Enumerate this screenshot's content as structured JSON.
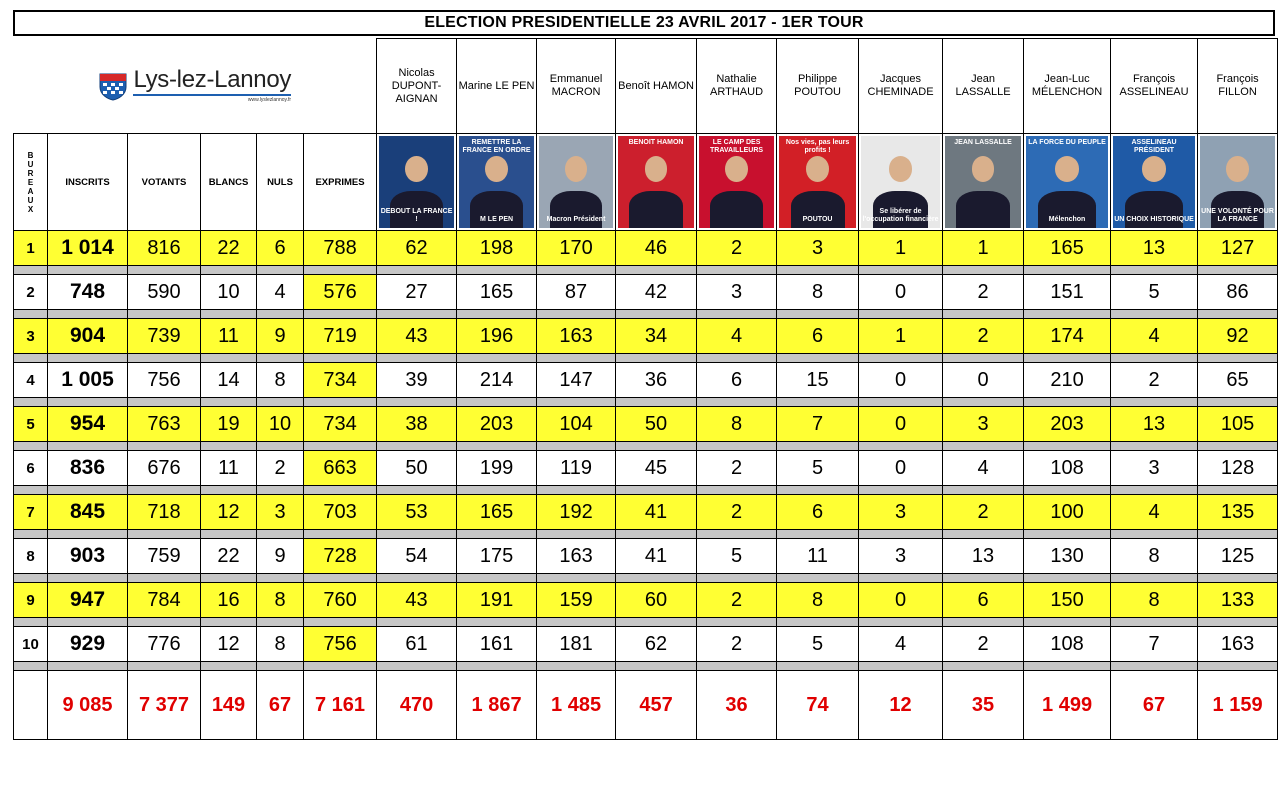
{
  "title": "ELECTION PRESIDENTIELLE 23 AVRIL 2017 - 1ER TOUR",
  "logo": {
    "name": "Lys-lez-Lannoy",
    "url": "www.lyslezlannoy.fr"
  },
  "columns": {
    "bureaux": [
      "B",
      "U",
      "R",
      "E",
      "A",
      "U",
      "X"
    ],
    "inscrits": "INSCRITS",
    "votants": "VOTANTS",
    "blancs": "BLANCS",
    "nuls": "NULS",
    "exprimes": "EXPRIMES"
  },
  "candidates": [
    {
      "name": "Nicolas DUPONT-AIGNAN",
      "line1": "Nicolas",
      "line2": "DUPONT-",
      "line3": "AIGNAN",
      "poster_bg": "#1a3f7a",
      "poster_caption": "DEBOUT LA FRANCE !",
      "poster_top": ""
    },
    {
      "name": "Marine LE PEN",
      "line1": "Marine LE PEN",
      "line2": "",
      "line3": "",
      "poster_bg": "#2a4f8e",
      "poster_caption": "M LE PEN",
      "poster_top": "REMETTRE LA FRANCE EN ORDRE"
    },
    {
      "name": "Emmanuel MACRON",
      "line1": "Emmanuel",
      "line2": "MACRON",
      "line3": "",
      "poster_bg": "#9aa6b4",
      "poster_caption": "Macron Président",
      "poster_top": ""
    },
    {
      "name": "Benoît HAMON",
      "line1": "Benoît HAMON",
      "line2": "",
      "line3": "",
      "poster_bg": "#cc1f2d",
      "poster_caption": "",
      "poster_top": "BENOIT HAMON"
    },
    {
      "name": "Nathalie ARTHAUD",
      "line1": "Nathalie",
      "line2": "ARTHAUD",
      "line3": "",
      "poster_bg": "#c8102e",
      "poster_caption": "",
      "poster_top": "LE CAMP DES TRAVAILLEURS"
    },
    {
      "name": "Philippe POUTOU",
      "line1": "Philippe",
      "line2": "POUTOU",
      "line3": "",
      "poster_bg": "#d21f26",
      "poster_caption": "POUTOU",
      "poster_top": "Nos vies, pas leurs profits !"
    },
    {
      "name": "Jacques CHEMINADE",
      "line1": "Jacques",
      "line2": "CHEMINADE",
      "line3": "",
      "poster_bg": "#e8e8e8",
      "poster_caption": "Se libérer de l'occupation financière",
      "poster_top": ""
    },
    {
      "name": "Jean LASSALLE",
      "line1": "Jean",
      "line2": "LASSALLE",
      "line3": "",
      "poster_bg": "#6e7880",
      "poster_caption": "",
      "poster_top": "JEAN LASSALLE"
    },
    {
      "name": "Jean-Luc MÉLENCHON",
      "line1": "Jean-Luc",
      "line2": "MÉLENCHON",
      "line3": "",
      "poster_bg": "#2d6bb5",
      "poster_caption": "Mélenchon",
      "poster_top": "LA FORCE DU PEUPLE"
    },
    {
      "name": "François ASSELINEAU",
      "line1": "François",
      "line2": "ASSELINEAU",
      "line3": "",
      "poster_bg": "#1f5aa6",
      "poster_caption": "UN CHOIX HISTORIQUE",
      "poster_top": "ASSELINEAU PRÉSIDENT"
    },
    {
      "name": "François FILLON",
      "line1": "François",
      "line2": "FILLON",
      "line3": "",
      "poster_bg": "#8fa1b3",
      "poster_caption": "UNE VOLONTÉ POUR LA FRANCE",
      "poster_top": ""
    }
  ],
  "rows": [
    {
      "bureau": "1",
      "inscrits": "1 014",
      "votants": "816",
      "blancs": "22",
      "nuls": "6",
      "exprimes": "788",
      "votes": [
        "62",
        "198",
        "170",
        "46",
        "2",
        "3",
        "1",
        "1",
        "165",
        "13",
        "127"
      ],
      "highlight": true,
      "exprimes_highlight": false
    },
    {
      "bureau": "2",
      "inscrits": "748",
      "votants": "590",
      "blancs": "10",
      "nuls": "4",
      "exprimes": "576",
      "votes": [
        "27",
        "165",
        "87",
        "42",
        "3",
        "8",
        "0",
        "2",
        "151",
        "5",
        "86"
      ],
      "highlight": false,
      "exprimes_highlight": true
    },
    {
      "bureau": "3",
      "inscrits": "904",
      "votants": "739",
      "blancs": "11",
      "nuls": "9",
      "exprimes": "719",
      "votes": [
        "43",
        "196",
        "163",
        "34",
        "4",
        "6",
        "1",
        "2",
        "174",
        "4",
        "92"
      ],
      "highlight": true,
      "exprimes_highlight": false
    },
    {
      "bureau": "4",
      "inscrits": "1 005",
      "votants": "756",
      "blancs": "14",
      "nuls": "8",
      "exprimes": "734",
      "votes": [
        "39",
        "214",
        "147",
        "36",
        "6",
        "15",
        "0",
        "0",
        "210",
        "2",
        "65"
      ],
      "highlight": false,
      "exprimes_highlight": true
    },
    {
      "bureau": "5",
      "inscrits": "954",
      "votants": "763",
      "blancs": "19",
      "nuls": "10",
      "exprimes": "734",
      "votes": [
        "38",
        "203",
        "104",
        "50",
        "8",
        "7",
        "0",
        "3",
        "203",
        "13",
        "105"
      ],
      "highlight": true,
      "exprimes_highlight": false
    },
    {
      "bureau": "6",
      "inscrits": "836",
      "votants": "676",
      "blancs": "11",
      "nuls": "2",
      "exprimes": "663",
      "votes": [
        "50",
        "199",
        "119",
        "45",
        "2",
        "5",
        "0",
        "4",
        "108",
        "3",
        "128"
      ],
      "highlight": false,
      "exprimes_highlight": true
    },
    {
      "bureau": "7",
      "inscrits": "845",
      "votants": "718",
      "blancs": "12",
      "nuls": "3",
      "exprimes": "703",
      "votes": [
        "53",
        "165",
        "192",
        "41",
        "2",
        "6",
        "3",
        "2",
        "100",
        "4",
        "135"
      ],
      "highlight": true,
      "exprimes_highlight": false
    },
    {
      "bureau": "8",
      "inscrits": "903",
      "votants": "759",
      "blancs": "22",
      "nuls": "9",
      "exprimes": "728",
      "votes": [
        "54",
        "175",
        "163",
        "41",
        "5",
        "11",
        "3",
        "13",
        "130",
        "8",
        "125"
      ],
      "highlight": false,
      "exprimes_highlight": true
    },
    {
      "bureau": "9",
      "inscrits": "947",
      "votants": "784",
      "blancs": "16",
      "nuls": "8",
      "exprimes": "760",
      "votes": [
        "43",
        "191",
        "159",
        "60",
        "2",
        "8",
        "0",
        "6",
        "150",
        "8",
        "133"
      ],
      "highlight": true,
      "exprimes_highlight": false
    },
    {
      "bureau": "10",
      "inscrits": "929",
      "votants": "776",
      "blancs": "12",
      "nuls": "8",
      "exprimes": "756",
      "votes": [
        "61",
        "161",
        "181",
        "62",
        "2",
        "5",
        "4",
        "2",
        "108",
        "7",
        "163"
      ],
      "highlight": false,
      "exprimes_highlight": true
    }
  ],
  "totals": {
    "inscrits": "9 085",
    "votants": "7 377",
    "blancs": "149",
    "nuls": "67",
    "exprimes": "7 161",
    "votes": [
      "470",
      "1 867",
      "1 485",
      "457",
      "36",
      "74",
      "12",
      "35",
      "1 499",
      "67",
      "1 159"
    ]
  },
  "colors": {
    "highlight": "#ffff33",
    "separator": "#c6c6c6",
    "totals": "#e00000",
    "logo_blue": "#1d5fb0",
    "logo_red": "#d62828"
  }
}
